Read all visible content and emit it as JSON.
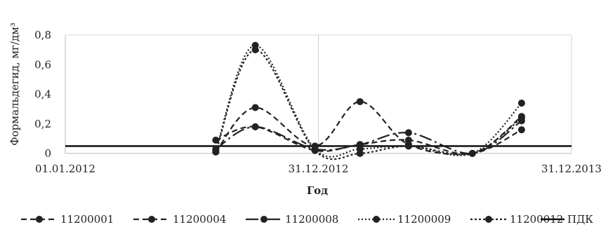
{
  "chart_data": {
    "type": "line",
    "title": "",
    "xlabel": "Год",
    "ylabel": "Формальдегид, мг/дм³",
    "ylim": [
      0,
      0.8
    ],
    "yticks": [
      0,
      0.2,
      0.4,
      0.6,
      0.8
    ],
    "ytick_labels": [
      "0",
      "0,2",
      "0,4",
      "0,6",
      "0,8"
    ],
    "xlim": [
      "2012-01-01",
      "2013-12-31"
    ],
    "xticks": [
      "2012-01-01",
      "2012-12-31",
      "2013-12-31"
    ],
    "xtick_labels": [
      "01.01.2012",
      "31.12.2012",
      "31.12.2013"
    ],
    "grid": "vertical major gridlines",
    "legend_position": "bottom",
    "x": [
      "2012-08-05",
      "2012-10-01",
      "2012-12-26",
      "2013-03-01",
      "2013-05-10",
      "2013-08-10",
      "2013-10-20"
    ],
    "series": [
      {
        "name": "11200001",
        "values": [
          0.01,
          0.31,
          0.05,
          0.35,
          0.06,
          0.0,
          0.16
        ],
        "dash": "8,5",
        "color": "#222222"
      },
      {
        "name": "11200004",
        "values": [
          0.09,
          0.18,
          0.02,
          0.06,
          0.09,
          0.0,
          0.25
        ],
        "dash": "8,5",
        "color": "#222222"
      },
      {
        "name": "11200008",
        "values": [
          0.03,
          0.18,
          0.03,
          0.06,
          0.14,
          0.0,
          0.22
        ],
        "dash": "18,5,3,5",
        "color": "#222222"
      },
      {
        "name": "11200009",
        "values": [
          0.02,
          0.73,
          0.03,
          0.03,
          0.05,
          0.0,
          0.34
        ],
        "dash": "2,3",
        "color": "#222222"
      },
      {
        "name": "11200012",
        "values": [
          0.01,
          0.7,
          0.02,
          0.0,
          0.05,
          0.0,
          0.24
        ],
        "dash": "3,3",
        "color": "#222222"
      }
    ],
    "reference_line": {
      "name": "ПДК",
      "value": 0.05,
      "color": "#111111"
    }
  }
}
